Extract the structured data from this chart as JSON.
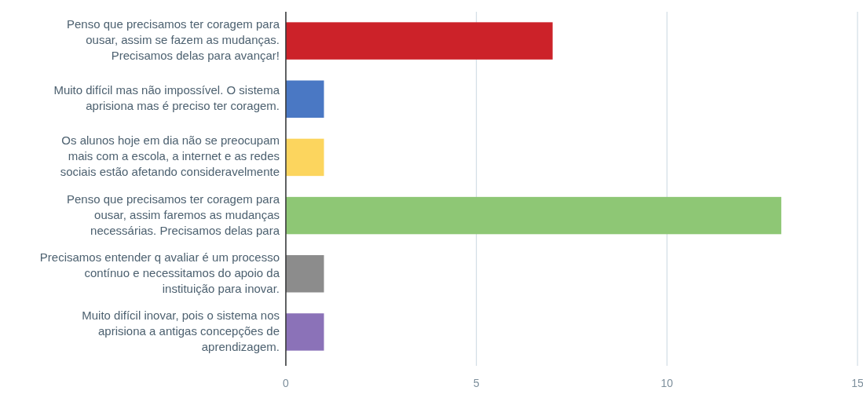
{
  "chart_data": {
    "type": "bar",
    "orientation": "horizontal",
    "categories": [
      "Penso que precisamos ter coragem para ousar, assim se fazem as mudanças. Precisamos delas para avançar!",
      "Muito difícil mas não impossível. O sistema aprisiona mas é preciso ter coragem.",
      "Os alunos hoje em dia não se preocupam mais com a escola, a internet e as redes sociais estão afetando consideravelmente",
      "Penso que precisamos ter coragem para ousar, assim faremos as mudanças necessárias. Precisamos delas para",
      "Precisamos entender q avaliar é um processo contínuo e necessitamos do apoio da instituição para inovar.",
      "Muito difícil inovar, pois o sistema nos aprisiona a antigas concepções de aprendizagem."
    ],
    "values": [
      7,
      1,
      1,
      13,
      1,
      1
    ],
    "colors": [
      "#cc2229",
      "#4a78c4",
      "#fcd55e",
      "#8ec775",
      "#8c8c8c",
      "#8b72b8"
    ],
    "xlim": [
      0,
      15
    ],
    "xticks": [
      0,
      5,
      10,
      15
    ],
    "grid": "x"
  }
}
